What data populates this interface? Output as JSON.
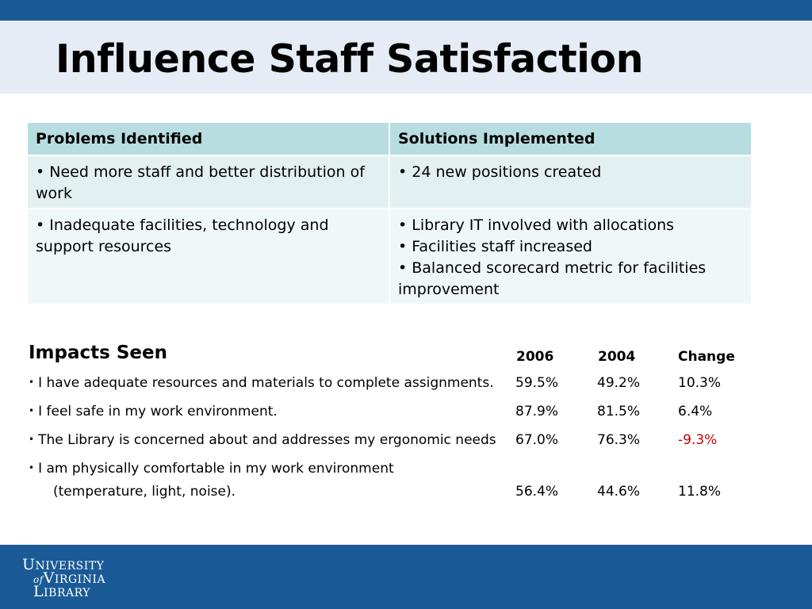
{
  "slide": {
    "title": "Influence Staff Satisfaction"
  },
  "table": {
    "headers": [
      "Problems Identified",
      "Solutions Implemented"
    ],
    "rows": [
      {
        "problem": [
          "• Need more staff and better distribution of work"
        ],
        "solutions": [
          "• 24 new positions created"
        ]
      },
      {
        "problem": [
          "• Inadequate facilities, technology and support resources"
        ],
        "solutions": [
          "• Library IT involved with allocations",
          "• Facilities staff increased",
          "• Balanced scorecard metric for facilities improvement"
        ]
      }
    ]
  },
  "impacts": {
    "title": "Impacts Seen",
    "columns": [
      "2006",
      "2004",
      "Change"
    ],
    "bullet": "•",
    "items": [
      {
        "text": "I have adequate resources and materials to complete assignments.",
        "v2006": "59.5%",
        "v2004": "49.2%",
        "change": "10.3%"
      },
      {
        "text": "I feel safe in my work environment.",
        "v2006": "87.9%",
        "v2004": "81.5%",
        "change": "6.4%"
      },
      {
        "text": "The Library is concerned about and addresses my ergonomic needs",
        "v2006": "67.0%",
        "v2004": "76.3%",
        "change": "-9.3%"
      },
      {
        "text": "I am physically comfortable in my work environment",
        "text2": "(temperature, light, noise).",
        "v2006": "56.4%",
        "v2004": "44.6%",
        "change": "11.8%"
      }
    ]
  },
  "colors": {
    "brand_blue": "#1a5a96",
    "title_band": "#e6ecf6",
    "table_header": "#b7dde0",
    "negative": "#c00000"
  },
  "logo": {
    "line1_U": "U",
    "line1_rest": "NIVERSITY",
    "line2_of": "of",
    "line2_V": "V",
    "line2_rest": "IRGINIA",
    "line3_L": "L",
    "line3_rest": "IBRARY"
  }
}
